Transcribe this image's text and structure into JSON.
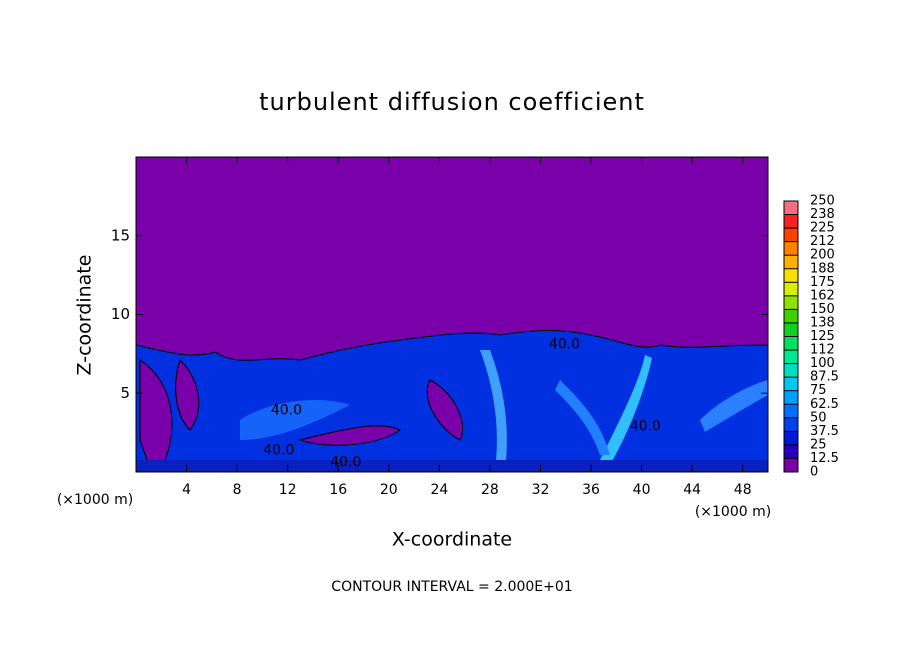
{
  "chart_data": {
    "type": "contour",
    "title": "turbulent diffusion coefficient",
    "xlabel": "X-coordinate",
    "ylabel": "Z-coordinate",
    "x_unit": "(×1000 m)",
    "footer": "CONTOUR INTERVAL = 2.000E+01",
    "xlim": [
      0,
      50
    ],
    "xticks": [
      4,
      8,
      12,
      16,
      20,
      24,
      28,
      32,
      36,
      40,
      44,
      48
    ],
    "ylim": [
      0,
      20
    ],
    "yticks": [
      5,
      10,
      15
    ],
    "background": "#7a00aa",
    "colorbar": {
      "lim": [
        0,
        250
      ],
      "ticks": [
        0,
        12.5,
        25,
        37.5,
        50,
        62.5,
        75,
        87.5,
        100,
        {
          "value": 112.5,
          "label": "112"
        },
        125,
        {
          "value": 137.5,
          "label": "138"
        },
        150,
        {
          "value": 162.5,
          "label": "162"
        },
        175,
        {
          "value": 187.5,
          "label": "188"
        },
        200,
        {
          "value": 212.5,
          "label": "212"
        },
        225,
        {
          "value": 237.5,
          "label": "238"
        },
        250
      ],
      "colors": [
        "#7a00aa",
        "#2a00c0",
        "#0018d8",
        "#0040f0",
        "#0070ff",
        "#00a0ff",
        "#00c8f0",
        "#00e0c0",
        "#00e890",
        "#00e060",
        "#10d020",
        "#40d000",
        "#90e000",
        "#d8f000",
        "#f8e000",
        "#ffb000",
        "#ff8000",
        "#ff4000",
        "#f82020",
        "#f07080"
      ]
    },
    "contour_labels": [
      {
        "value": 40,
        "label": "40.0",
        "x": 11.9,
        "z": 3.9
      },
      {
        "value": 40,
        "label": "40.0",
        "x": 11.3,
        "z": 1.35
      },
      {
        "value": 40,
        "label": "40.0",
        "x": 16.6,
        "z": 0.6
      },
      {
        "value": 40,
        "label": "40.0",
        "x": 33.9,
        "z": 8.1
      },
      {
        "value": 40,
        "label": "40.0",
        "x": 40.3,
        "z": 2.9
      }
    ]
  }
}
